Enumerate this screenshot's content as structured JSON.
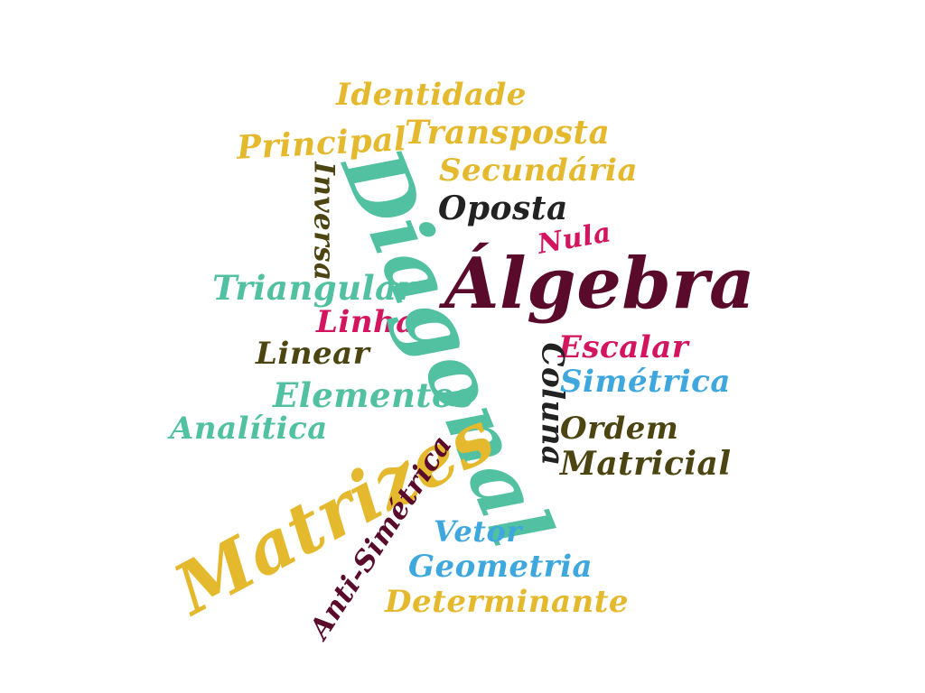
{
  "palette": {
    "yellow": "#e5b92d",
    "teal": "#52c1a1",
    "maroon": "#5a0a2b",
    "olive": "#4c4512",
    "black": "#222222",
    "pink": "#d3145f",
    "blue": "#3ea7de"
  },
  "words": {
    "identidade": {
      "text": "Identidade",
      "color": "#e5b92d"
    },
    "principal": {
      "text": "Principal",
      "color": "#e5b92d"
    },
    "transposta": {
      "text": "Transposta",
      "color": "#e5b92d"
    },
    "secundaria": {
      "text": "Secundária",
      "color": "#e5b92d"
    },
    "oposta": {
      "text": "Oposta",
      "color": "#222222"
    },
    "inversa": {
      "text": "Inversa",
      "color": "#4c4512"
    },
    "nula": {
      "text": "Nula",
      "color": "#d3145f"
    },
    "diagonal": {
      "text": "Diagonal",
      "color": "#52c1a1"
    },
    "algebra": {
      "text": "Álgebra",
      "color": "#5a0a2b"
    },
    "triangular": {
      "text": "Triangular",
      "color": "#52c1a1"
    },
    "linha": {
      "text": "Linha",
      "color": "#d3145f"
    },
    "escalar": {
      "text": "Escalar",
      "color": "#d3145f"
    },
    "linear": {
      "text": "Linear",
      "color": "#4c4512"
    },
    "coluna": {
      "text": "Coluna",
      "color": "#222222"
    },
    "simetrica": {
      "text": "Simétrica",
      "color": "#3ea7de"
    },
    "elementos": {
      "text": "Elementos",
      "color": "#52c1a1"
    },
    "analitica": {
      "text": "Analítica",
      "color": "#52c1a1"
    },
    "ordem": {
      "text": "Ordem",
      "color": "#4c4512"
    },
    "matricial": {
      "text": "Matricial",
      "color": "#4c4512"
    },
    "matrizes": {
      "text": "Matrizes",
      "color": "#e5b92d"
    },
    "antisimetrica": {
      "text": "Anti-Simétrica",
      "color": "#5a0a2b"
    },
    "vetor": {
      "text": "Vetor",
      "color": "#3ea7de"
    },
    "geometria": {
      "text": "Geometria",
      "color": "#3ea7de"
    },
    "determinante": {
      "text": "Determinante",
      "color": "#e5b92d"
    }
  }
}
